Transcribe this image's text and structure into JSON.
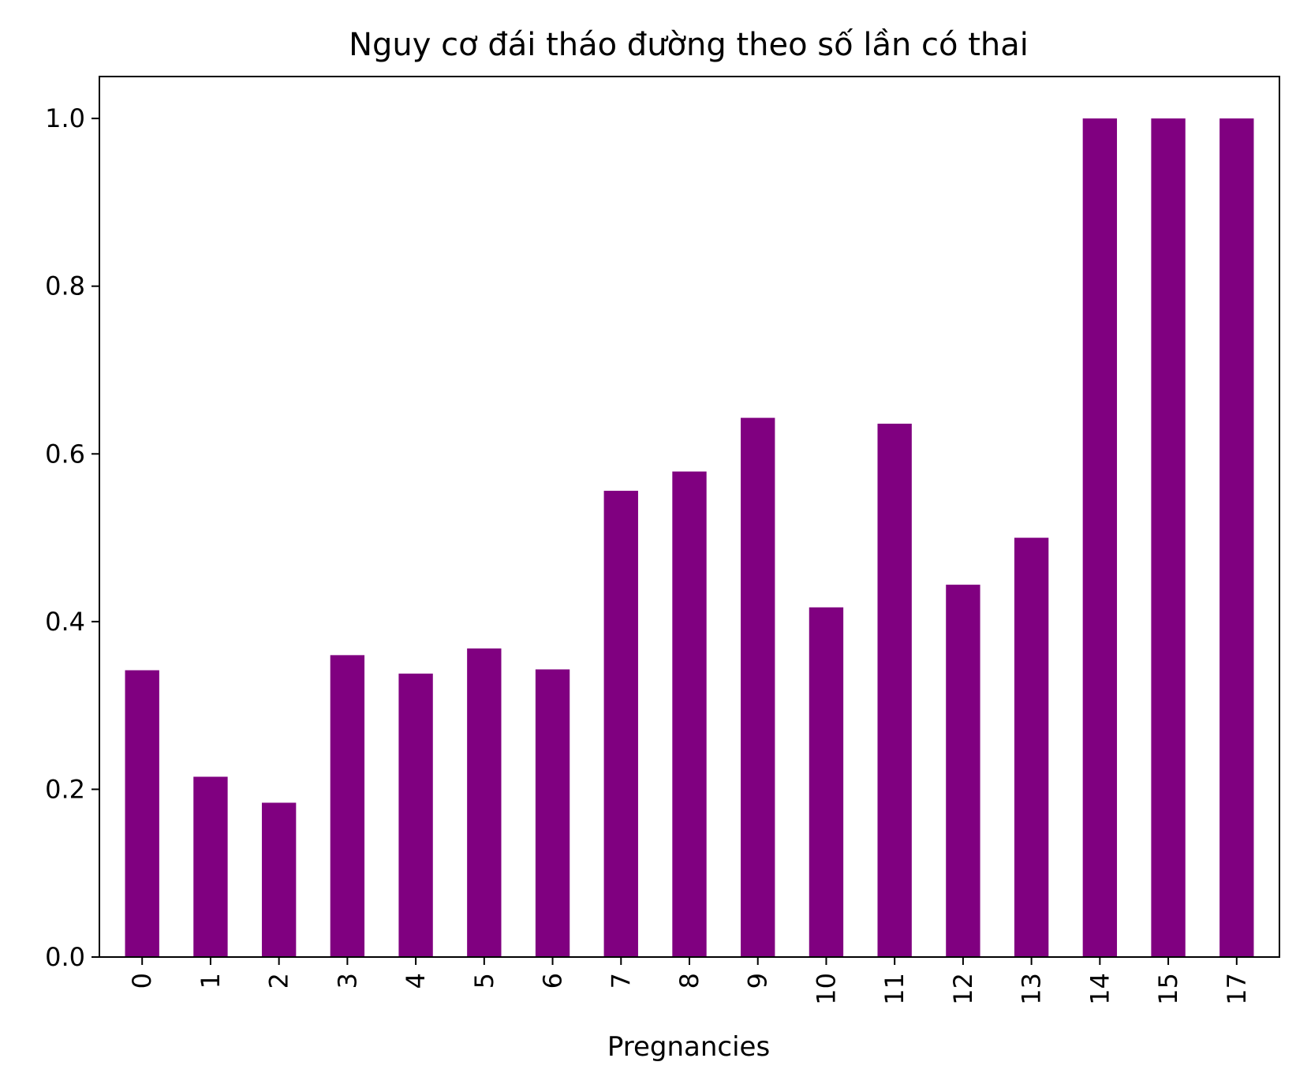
{
  "chart_data": {
    "type": "bar",
    "title": "Nguy cơ đái tháo đường theo số lần có thai",
    "xlabel": "Pregnancies",
    "ylabel": "",
    "categories": [
      "0",
      "1",
      "2",
      "3",
      "4",
      "5",
      "6",
      "7",
      "8",
      "9",
      "10",
      "11",
      "12",
      "13",
      "14",
      "15",
      "17"
    ],
    "values": [
      0.342,
      0.215,
      0.184,
      0.36,
      0.338,
      0.368,
      0.343,
      0.556,
      0.579,
      0.643,
      0.417,
      0.636,
      0.444,
      0.5,
      1.0,
      1.0,
      1.0
    ],
    "ylim": [
      0,
      1.05
    ],
    "yticks": [
      0.0,
      0.2,
      0.4,
      0.6,
      0.8,
      1.0
    ],
    "ytick_labels": [
      "0.0",
      "0.2",
      "0.4",
      "0.6",
      "0.8",
      "1.0"
    ],
    "bar_color": "#800080",
    "grid": false,
    "legend": "none"
  }
}
